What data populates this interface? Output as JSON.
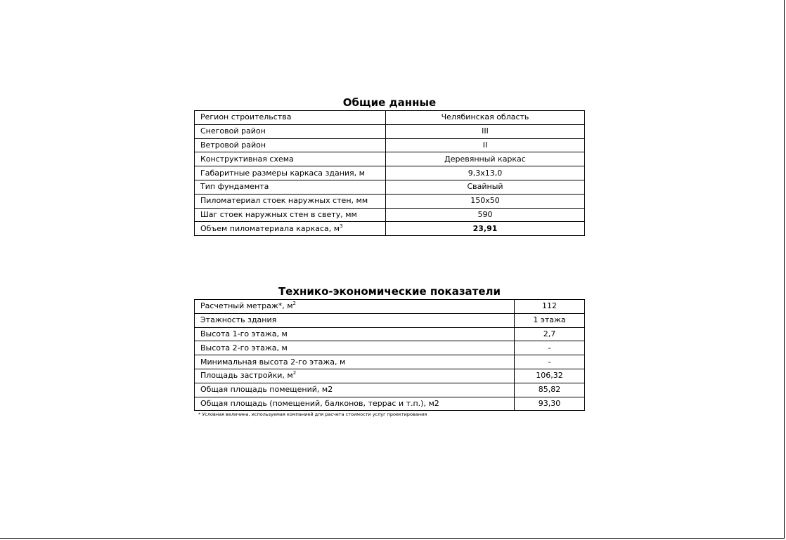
{
  "general": {
    "title": "Общие данные",
    "rows": [
      {
        "label": "Регион строительства",
        "sup": "",
        "value": "Челябинская область",
        "bold": false
      },
      {
        "label": "Снеговой район",
        "sup": "",
        "value": "III",
        "bold": false
      },
      {
        "label": "Ветровой район",
        "sup": "",
        "value": "II",
        "bold": false
      },
      {
        "label": "Конструктивная схема",
        "sup": "",
        "value": "Деревянный каркас",
        "bold": false
      },
      {
        "label": "Габаритные размеры каркаса здания, м",
        "sup": "",
        "value": "9,3x13,0",
        "bold": false
      },
      {
        "label": "Тип фундамента",
        "sup": "",
        "value": "Свайный",
        "bold": false
      },
      {
        "label": "Пиломатериал стоек наружных стен, мм",
        "sup": "",
        "value": "150x50",
        "bold": false
      },
      {
        "label": "Шаг стоек наружных стен в свету, мм",
        "sup": "",
        "value": "590",
        "bold": false
      },
      {
        "label": "Объем пиломатериала каркаса, м",
        "sup": "3",
        "value": "23,91",
        "bold": true
      }
    ]
  },
  "tep": {
    "title": "Технико-экономические показатели",
    "rows": [
      {
        "label": "Расчетный метраж*, м",
        "sup": "2",
        "value": "112"
      },
      {
        "label": "Этажность здания",
        "sup": "",
        "value": "1 этажа"
      },
      {
        "label": "Высота 1-го этажа, м",
        "sup": "",
        "value": "2,7"
      },
      {
        "label": "Высота 2-го этажа, м",
        "sup": "",
        "value": "-"
      },
      {
        "label": "Минимальная высота 2-го этажа, м",
        "sup": "",
        "value": "-"
      },
      {
        "label": "Площадь застройки, м",
        "sup": "2",
        "value": "106,32"
      },
      {
        "label": "Общая площадь помещений, м2",
        "sup": "",
        "value": "85,82"
      },
      {
        "label": "Общая площадь (помещений, балконов, террас и т.п.), м2",
        "sup": "",
        "value": "93,30"
      }
    ],
    "footnote": "* Условная величина, используемая компанией для расчета стоимости услуг проектирования"
  }
}
